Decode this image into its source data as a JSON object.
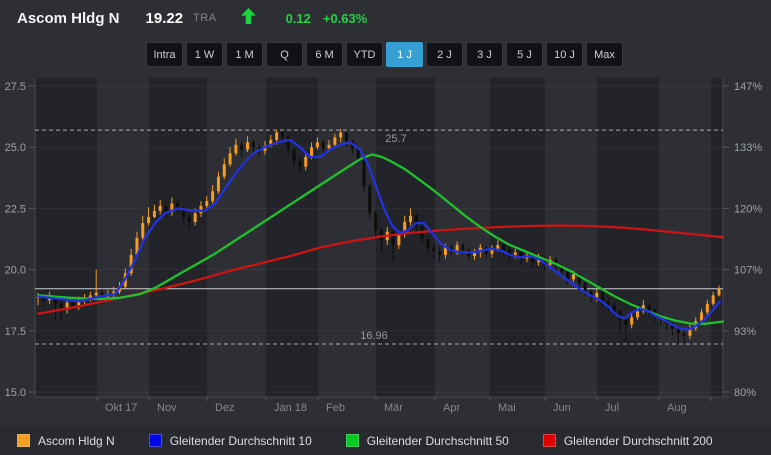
{
  "header": {
    "title": "Ascom Hldg N",
    "price": "19.22",
    "exchange": "TRA",
    "change": "0.12",
    "change_pct": "+0.63%",
    "arrow_icon": "up-arrow",
    "up_color": "#27d247"
  },
  "ranges": {
    "items": [
      "Intra",
      "1 W",
      "1 M",
      "Q",
      "6 M",
      "YTD",
      "1 J",
      "2 J",
      "3 J",
      "5 J",
      "10 J",
      "Max"
    ],
    "active": "1 J"
  },
  "chart_data": {
    "type": "candlestick",
    "title": "Ascom Hldg N — 1 J",
    "y_axis_left": {
      "ticks": [
        27.5,
        25.0,
        22.5,
        20.0,
        17.5,
        15.0
      ],
      "labels": [
        "27.5",
        "25.0",
        "22.5",
        "20.0",
        "17.5",
        "15.0"
      ]
    },
    "y_axis_right": {
      "labels": [
        "147%",
        "133%",
        "120%",
        "107%",
        "93%",
        "80%"
      ]
    },
    "x_axis": {
      "month_labels": [
        "Okt 17",
        "Nov",
        "Dez",
        "Jan 18",
        "Feb",
        "Mär",
        "Apr",
        "Mai",
        "Jun",
        "Jul",
        "Aug"
      ]
    },
    "high_line": {
      "value": 25.7,
      "label": "25.7"
    },
    "low_line": {
      "value": 16.96,
      "label": "16.96"
    },
    "last_price_line": 19.22,
    "ylim": [
      15.0,
      27.5
    ],
    "grid": true,
    "candles": [
      [
        18.85,
        19.05,
        18.55,
        18.9
      ],
      [
        18.9,
        19.0,
        18.5,
        18.75
      ],
      [
        18.75,
        19.1,
        18.6,
        18.95
      ],
      [
        18.95,
        18.95,
        17.95,
        18.6
      ],
      [
        18.6,
        18.75,
        17.85,
        18.4
      ],
      [
        18.4,
        18.8,
        18.2,
        18.65
      ],
      [
        18.65,
        18.85,
        18.3,
        18.55
      ],
      [
        18.55,
        18.9,
        18.35,
        18.75
      ],
      [
        18.75,
        19.0,
        18.6,
        18.85
      ],
      [
        18.85,
        19.1,
        18.7,
        18.95
      ],
      [
        18.95,
        20.0,
        18.85,
        19.05
      ],
      [
        19.05,
        19.2,
        18.6,
        18.9
      ],
      [
        18.9,
        19.15,
        18.7,
        18.95
      ],
      [
        18.95,
        19.3,
        18.85,
        19.1
      ],
      [
        19.1,
        19.5,
        19.0,
        19.3
      ],
      [
        19.3,
        20.05,
        19.2,
        19.85
      ],
      [
        19.85,
        20.85,
        19.75,
        20.6
      ],
      [
        20.6,
        21.55,
        20.5,
        21.3
      ],
      [
        21.3,
        22.2,
        21.2,
        21.9
      ],
      [
        21.9,
        22.55,
        21.8,
        22.15
      ],
      [
        22.15,
        22.65,
        22.1,
        22.4
      ],
      [
        22.4,
        22.85,
        22.25,
        22.6
      ],
      [
        22.6,
        22.8,
        22.1,
        22.35
      ],
      [
        22.35,
        22.95,
        22.2,
        22.7
      ],
      [
        22.7,
        22.85,
        22.25,
        22.5
      ],
      [
        22.5,
        22.6,
        21.9,
        22.15
      ],
      [
        22.15,
        22.25,
        21.65,
        21.95
      ],
      [
        21.95,
        22.5,
        21.8,
        22.3
      ],
      [
        22.3,
        22.8,
        22.15,
        22.6
      ],
      [
        22.6,
        23.0,
        22.5,
        22.8
      ],
      [
        22.8,
        23.45,
        22.7,
        23.2
      ],
      [
        23.2,
        24.0,
        23.1,
        23.8
      ],
      [
        23.8,
        24.55,
        23.7,
        24.3
      ],
      [
        24.3,
        25.0,
        24.2,
        24.75
      ],
      [
        24.75,
        25.35,
        24.65,
        25.1
      ],
      [
        25.1,
        25.25,
        24.6,
        24.9
      ],
      [
        24.9,
        25.45,
        24.8,
        25.2
      ],
      [
        25.2,
        25.3,
        24.75,
        25.0
      ],
      [
        25.0,
        25.15,
        24.6,
        24.85
      ],
      [
        24.85,
        25.25,
        24.7,
        25.05
      ],
      [
        25.05,
        25.5,
        25.0,
        25.3
      ],
      [
        25.3,
        25.7,
        25.1,
        25.6
      ],
      [
        25.6,
        25.68,
        25.2,
        25.45
      ],
      [
        25.45,
        25.5,
        24.7,
        24.9
      ],
      [
        24.9,
        25.0,
        24.2,
        24.45
      ],
      [
        24.45,
        24.6,
        23.95,
        24.2
      ],
      [
        24.2,
        24.8,
        24.05,
        24.6
      ],
      [
        24.6,
        25.2,
        24.5,
        25.0
      ],
      [
        25.0,
        25.4,
        24.9,
        25.2
      ],
      [
        25.2,
        25.3,
        24.7,
        24.95
      ],
      [
        24.95,
        25.3,
        24.8,
        25.1
      ],
      [
        25.1,
        25.55,
        24.95,
        25.4
      ],
      [
        25.4,
        25.74,
        25.2,
        25.6
      ],
      [
        25.6,
        25.65,
        25.0,
        25.25
      ],
      [
        25.25,
        25.3,
        24.7,
        24.95
      ],
      [
        24.95,
        25.05,
        24.3,
        24.55
      ],
      [
        24.55,
        24.6,
        23.15,
        23.4
      ],
      [
        23.4,
        23.5,
        22.0,
        22.3
      ],
      [
        22.3,
        22.45,
        21.25,
        21.6
      ],
      [
        21.6,
        21.7,
        20.7,
        21.2
      ],
      [
        21.2,
        21.75,
        21.0,
        21.55
      ],
      [
        21.55,
        21.6,
        20.35,
        21.0
      ],
      [
        21.0,
        21.6,
        20.85,
        21.45
      ],
      [
        21.45,
        22.2,
        21.3,
        21.95
      ],
      [
        21.95,
        22.5,
        21.8,
        22.2
      ],
      [
        22.2,
        22.3,
        21.55,
        21.75
      ],
      [
        21.75,
        21.85,
        21.05,
        21.25
      ],
      [
        21.25,
        21.4,
        20.65,
        20.9
      ],
      [
        20.9,
        21.1,
        20.5,
        20.75
      ],
      [
        20.75,
        20.95,
        20.3,
        20.6
      ],
      [
        20.6,
        21.05,
        20.45,
        20.9
      ],
      [
        20.9,
        21.0,
        20.5,
        20.7
      ],
      [
        20.7,
        21.15,
        20.6,
        21.0
      ],
      [
        21.0,
        21.1,
        20.6,
        20.8
      ],
      [
        20.8,
        20.9,
        20.35,
        20.55
      ],
      [
        20.55,
        20.85,
        20.4,
        20.7
      ],
      [
        20.7,
        21.05,
        20.5,
        20.9
      ],
      [
        20.9,
        20.95,
        20.45,
        20.65
      ],
      [
        20.65,
        21.0,
        20.5,
        20.85
      ],
      [
        20.85,
        21.2,
        20.75,
        21.0
      ],
      [
        21.0,
        21.1,
        20.6,
        20.8
      ],
      [
        20.8,
        20.9,
        20.35,
        20.55
      ],
      [
        20.55,
        20.85,
        20.45,
        20.7
      ],
      [
        20.7,
        20.75,
        20.2,
        20.45
      ],
      [
        20.45,
        20.75,
        20.3,
        20.6
      ],
      [
        20.6,
        20.65,
        20.1,
        20.3
      ],
      [
        20.3,
        20.65,
        20.15,
        20.5
      ],
      [
        20.5,
        20.5,
        19.95,
        20.2
      ],
      [
        20.2,
        20.55,
        20.05,
        20.4
      ],
      [
        20.4,
        20.5,
        19.95,
        20.15
      ],
      [
        20.15,
        20.25,
        19.7,
        19.9
      ],
      [
        19.9,
        19.95,
        19.4,
        19.6
      ],
      [
        19.6,
        19.95,
        19.5,
        19.8
      ],
      [
        19.8,
        19.85,
        19.25,
        19.45
      ],
      [
        19.45,
        19.5,
        18.9,
        19.1
      ],
      [
        19.1,
        19.2,
        18.65,
        18.85
      ],
      [
        18.85,
        19.2,
        18.7,
        19.05
      ],
      [
        19.05,
        19.1,
        18.5,
        18.7
      ],
      [
        18.7,
        18.85,
        18.3,
        18.55
      ],
      [
        18.55,
        18.7,
        18.05,
        18.3
      ],
      [
        18.3,
        18.35,
        17.4,
        17.95
      ],
      [
        17.95,
        18.1,
        17.05,
        17.75
      ],
      [
        17.75,
        18.25,
        17.6,
        18.05
      ],
      [
        18.05,
        18.5,
        17.95,
        18.3
      ],
      [
        18.3,
        18.75,
        18.2,
        18.55
      ],
      [
        18.55,
        18.6,
        18.1,
        18.35
      ],
      [
        18.35,
        18.4,
        17.85,
        18.1
      ],
      [
        18.1,
        18.2,
        17.7,
        17.95
      ],
      [
        17.95,
        18.0,
        17.5,
        17.8
      ],
      [
        17.8,
        17.85,
        17.3,
        17.6
      ],
      [
        17.6,
        17.7,
        16.96,
        17.4
      ],
      [
        17.4,
        17.55,
        17.0,
        17.3
      ],
      [
        17.3,
        17.75,
        17.15,
        17.6
      ],
      [
        17.6,
        18.05,
        17.5,
        17.9
      ],
      [
        17.9,
        18.4,
        17.8,
        18.25
      ],
      [
        18.25,
        18.75,
        18.15,
        18.6
      ],
      [
        18.6,
        19.1,
        18.5,
        18.95
      ],
      [
        18.95,
        19.35,
        18.9,
        19.22
      ]
    ],
    "series": [
      {
        "name": "Gleitender Durchschnitt 10",
        "color": "#2233dd",
        "points": [
          [
            38,
            18.9
          ],
          [
            60,
            18.8
          ],
          [
            80,
            18.7
          ],
          [
            100,
            18.9
          ],
          [
            115,
            19.0
          ],
          [
            125,
            19.6
          ],
          [
            135,
            20.4
          ],
          [
            145,
            21.3
          ],
          [
            155,
            21.9
          ],
          [
            165,
            22.3
          ],
          [
            178,
            22.5
          ],
          [
            192,
            22.4
          ],
          [
            205,
            22.4
          ],
          [
            215,
            22.7
          ],
          [
            225,
            23.3
          ],
          [
            235,
            23.9
          ],
          [
            245,
            24.4
          ],
          [
            255,
            24.8
          ],
          [
            265,
            25.0
          ],
          [
            278,
            25.2
          ],
          [
            290,
            25.3
          ],
          [
            300,
            25.0
          ],
          [
            310,
            24.6
          ],
          [
            320,
            24.6
          ],
          [
            330,
            24.9
          ],
          [
            340,
            25.1
          ],
          [
            350,
            25.2
          ],
          [
            360,
            24.9
          ],
          [
            368,
            24.3
          ],
          [
            376,
            23.4
          ],
          [
            384,
            22.5
          ],
          [
            392,
            21.8
          ],
          [
            400,
            21.5
          ],
          [
            408,
            21.6
          ],
          [
            416,
            21.9
          ],
          [
            424,
            21.9
          ],
          [
            432,
            21.5
          ],
          [
            440,
            21.1
          ],
          [
            450,
            20.8
          ],
          [
            460,
            20.7
          ],
          [
            470,
            20.7
          ],
          [
            480,
            20.75
          ],
          [
            490,
            20.85
          ],
          [
            500,
            20.8
          ],
          [
            510,
            20.6
          ],
          [
            520,
            20.5
          ],
          [
            530,
            20.55
          ],
          [
            540,
            20.4
          ],
          [
            550,
            20.1
          ],
          [
            560,
            19.8
          ],
          [
            570,
            19.5
          ],
          [
            580,
            19.2
          ],
          [
            590,
            18.95
          ],
          [
            600,
            18.75
          ],
          [
            608,
            18.5
          ],
          [
            616,
            18.15
          ],
          [
            624,
            18.0
          ],
          [
            632,
            18.25
          ],
          [
            640,
            18.4
          ],
          [
            648,
            18.3
          ],
          [
            656,
            18.1
          ],
          [
            664,
            17.95
          ],
          [
            672,
            17.75
          ],
          [
            680,
            17.6
          ],
          [
            688,
            17.55
          ],
          [
            696,
            17.7
          ],
          [
            704,
            17.95
          ],
          [
            712,
            18.3
          ],
          [
            720,
            18.7
          ]
        ]
      },
      {
        "name": "Gleitender Durchschnitt 50",
        "color": "#1fc12f",
        "points": [
          [
            38,
            18.95
          ],
          [
            70,
            18.85
          ],
          [
            100,
            18.8
          ],
          [
            120,
            18.85
          ],
          [
            140,
            19.0
          ],
          [
            155,
            19.25
          ],
          [
            170,
            19.6
          ],
          [
            185,
            19.95
          ],
          [
            200,
            20.3
          ],
          [
            215,
            20.65
          ],
          [
            230,
            21.05
          ],
          [
            245,
            21.45
          ],
          [
            260,
            21.85
          ],
          [
            275,
            22.25
          ],
          [
            290,
            22.65
          ],
          [
            305,
            23.05
          ],
          [
            320,
            23.45
          ],
          [
            335,
            23.85
          ],
          [
            350,
            24.25
          ],
          [
            362,
            24.55
          ],
          [
            372,
            24.7
          ],
          [
            382,
            24.6
          ],
          [
            392,
            24.4
          ],
          [
            405,
            24.1
          ],
          [
            420,
            23.65
          ],
          [
            435,
            23.2
          ],
          [
            450,
            22.7
          ],
          [
            465,
            22.2
          ],
          [
            480,
            21.75
          ],
          [
            495,
            21.35
          ],
          [
            510,
            21.0
          ],
          [
            525,
            20.75
          ],
          [
            540,
            20.5
          ],
          [
            555,
            20.25
          ],
          [
            570,
            19.95
          ],
          [
            585,
            19.6
          ],
          [
            600,
            19.25
          ],
          [
            615,
            18.9
          ],
          [
            630,
            18.6
          ],
          [
            645,
            18.35
          ],
          [
            660,
            18.1
          ],
          [
            675,
            17.92
          ],
          [
            690,
            17.8
          ],
          [
            705,
            17.78
          ],
          [
            723,
            17.88
          ]
        ]
      },
      {
        "name": "Gleitender Durchschnitt 200",
        "color": "#cc1414",
        "points": [
          [
            38,
            18.2
          ],
          [
            80,
            18.5
          ],
          [
            120,
            18.85
          ],
          [
            160,
            19.2
          ],
          [
            200,
            19.6
          ],
          [
            230,
            19.95
          ],
          [
            260,
            20.25
          ],
          [
            290,
            20.55
          ],
          [
            320,
            20.9
          ],
          [
            350,
            21.15
          ],
          [
            380,
            21.35
          ],
          [
            410,
            21.5
          ],
          [
            440,
            21.6
          ],
          [
            470,
            21.68
          ],
          [
            500,
            21.74
          ],
          [
            530,
            21.78
          ],
          [
            560,
            21.8
          ],
          [
            590,
            21.78
          ],
          [
            620,
            21.72
          ],
          [
            650,
            21.62
          ],
          [
            680,
            21.5
          ],
          [
            700,
            21.42
          ],
          [
            723,
            21.32
          ]
        ]
      }
    ],
    "colors": {
      "band_dark": "#232429",
      "candle_up": "#f59d20",
      "candle_down": "#0d0d0d",
      "grid_tick": "#56595f",
      "grid_line": "rgba(255,255,255,0.05)",
      "axis_text": "#9ea1a6",
      "month_text": "#85888d",
      "dashed_line": "#a9abaf",
      "dashed_text": "#97999d",
      "price_line": "#cbcdd0",
      "plot_edge": "#474a50"
    }
  },
  "legend": {
    "items": [
      {
        "label": "Ascom Hldg N",
        "color": "#f5a020"
      },
      {
        "label": "Gleitender Durchschnitt 10",
        "color": "#0008e8"
      },
      {
        "label": "Gleitender Durchschnitt 50",
        "color": "#00cc22"
      },
      {
        "label": "Gleitender Durchschnitt 200",
        "color": "#e00000"
      }
    ]
  }
}
